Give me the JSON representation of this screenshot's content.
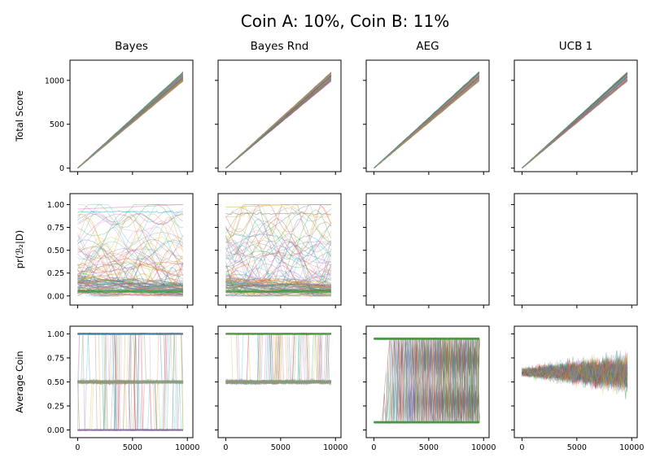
{
  "chart_data": {
    "type": "line",
    "title": "Coin A: 10%, Coin B: 11%",
    "columns": [
      "Bayes",
      "Bayes Rnd",
      "AEG",
      "UCB 1"
    ],
    "rows": [
      {
        "ylabel": "Total Score",
        "ylim": [
          -40,
          1230
        ],
        "yticks": [
          "0",
          "500",
          "1000"
        ],
        "ytick_values": [
          0,
          500,
          1000
        ]
      },
      {
        "ylabel": "pr(ℬ₂|D)",
        "ylim": [
          -0.1,
          1.12
        ],
        "yticks": [
          "0.00",
          "0.25",
          "0.50",
          "0.75",
          "1.00"
        ],
        "ytick_values": [
          0,
          0.25,
          0.5,
          0.75,
          1.0
        ]
      },
      {
        "ylabel": "Average Coin",
        "ylim": [
          -0.08,
          1.08
        ],
        "yticks": [
          "0.00",
          "0.25",
          "0.50",
          "0.75",
          "1.00"
        ],
        "ytick_values": [
          0,
          0.25,
          0.5,
          0.75,
          1.0
        ]
      }
    ],
    "xlim": [
      -700,
      10500
    ],
    "xticks": [
      "0",
      "5000",
      "10000"
    ],
    "xtick_values": [
      0,
      5000,
      10000
    ],
    "x_range": [
      0,
      9600
    ],
    "grid": false,
    "panels": {
      "total_score": {
        "x": [
          0,
          9600
        ],
        "y_start": 0,
        "y_end_range": [
          990,
          1100
        ]
      },
      "posterior_bayes": {
        "x": [
          0,
          9600
        ],
        "y_start_range": [
          0.0,
          0.95
        ],
        "y_end_range": [
          0.0,
          1.0
        ],
        "empty": false
      },
      "posterior_bayes_rnd": {
        "x": [
          0,
          9600
        ],
        "y_start_range": [
          0.0,
          0.9
        ],
        "y_end_range": [
          0.0,
          1.0
        ],
        "empty": false
      },
      "posterior_aeg": {
        "empty": true
      },
      "posterior_ucb1": {
        "empty": true
      },
      "avg_coin_bayes": {
        "levels": [
          0.0,
          0.5,
          1.0
        ]
      },
      "avg_coin_bayes_rnd": {
        "levels": [
          0.5,
          1.0
        ]
      },
      "avg_coin_aeg": {
        "levels": [
          0.08,
          0.95
        ]
      },
      "avg_coin_ucb1": {
        "center": 0.6,
        "spread": [
          0.2,
          1.0
        ]
      }
    }
  }
}
